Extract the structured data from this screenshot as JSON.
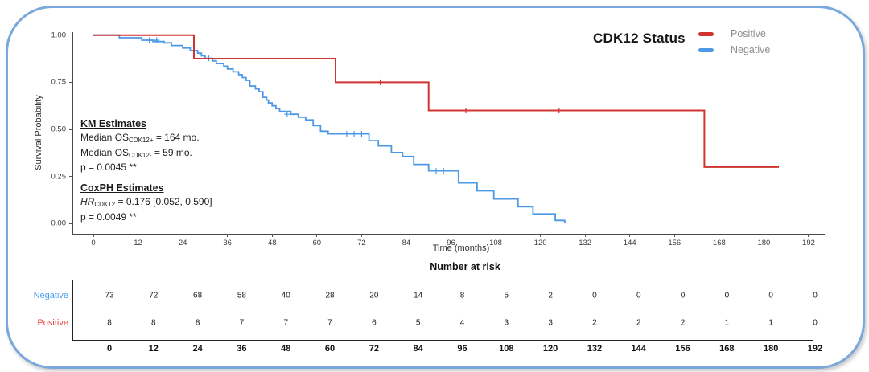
{
  "header": {
    "title": "CDK12 Status",
    "legend": [
      {
        "label": "Positive",
        "color": "#cf3430"
      },
      {
        "label": "Negative",
        "color": "#4c99e6"
      }
    ]
  },
  "annotations": {
    "km": {
      "heading": "KM Estimates",
      "lines": [
        {
          "segments": [
            {
              "v": "Median OS"
            },
            {
              "v": "CDK12+",
              "sub": true
            },
            {
              "v": " = 164 mo."
            }
          ]
        },
        {
          "segments": [
            {
              "v": "Median OS"
            },
            {
              "v": "CDK12-",
              "sub": true
            },
            {
              "v": " = 59 mo."
            }
          ]
        },
        {
          "segments": [
            {
              "v": "p = 0.0045 **"
            }
          ]
        }
      ]
    },
    "cox": {
      "heading": "CoxPH Estimates",
      "lines": [
        {
          "segments": [
            {
              "v": "HR",
              "it": true
            },
            {
              "v": "CDK12",
              "sub": true
            },
            {
              "v": " = 0.176 [0.052, 0.590]"
            }
          ]
        },
        {
          "segments": [
            {
              "v": "p = 0.0049 **"
            }
          ]
        }
      ]
    }
  },
  "chart_data": {
    "type": "line",
    "subtype": "kaplan-meier-step",
    "title": "CDK12 Status",
    "xlabel": "Time (months)",
    "ylabel": "Survival Probability",
    "xlim": [
      0,
      192
    ],
    "ylim": [
      0,
      1
    ],
    "x_ticks": [
      0,
      12,
      24,
      36,
      48,
      60,
      72,
      84,
      96,
      108,
      120,
      132,
      144,
      156,
      168,
      180,
      192
    ],
    "y_ticks": [
      {
        "label": "1.00",
        "value": 1.0
      },
      {
        "label": "0.75",
        "value": 0.75
      },
      {
        "label": "0.50",
        "value": 0.5
      },
      {
        "label": "0.25",
        "value": 0.25
      },
      {
        "label": "0.00",
        "value": 0.0
      }
    ],
    "grid": false,
    "legend_position": "top-right",
    "series": [
      {
        "name": "Positive",
        "color": "#cf3430",
        "steps": [
          [
            0,
            1.0
          ],
          [
            27,
            0.875
          ],
          [
            65,
            0.75
          ],
          [
            90,
            0.6
          ],
          [
            164,
            0.3
          ]
        ],
        "end_time": 184,
        "censors": [
          [
            77,
            0.75
          ],
          [
            100,
            0.6
          ],
          [
            125,
            0.6
          ]
        ]
      },
      {
        "name": "Negative",
        "color": "#4c99e6",
        "steps": [
          [
            0,
            1.0
          ],
          [
            7,
            0.986
          ],
          [
            13,
            0.973
          ],
          [
            16,
            0.966
          ],
          [
            19,
            0.959
          ],
          [
            21,
            0.945
          ],
          [
            24,
            0.932
          ],
          [
            26,
            0.918
          ],
          [
            28,
            0.904
          ],
          [
            29,
            0.89
          ],
          [
            30,
            0.877
          ],
          [
            32,
            0.863
          ],
          [
            33,
            0.849
          ],
          [
            35,
            0.835
          ],
          [
            36,
            0.82
          ],
          [
            37.5,
            0.805
          ],
          [
            39,
            0.79
          ],
          [
            40,
            0.775
          ],
          [
            41,
            0.76
          ],
          [
            42,
            0.73
          ],
          [
            43.5,
            0.715
          ],
          [
            44.5,
            0.7
          ],
          [
            45.5,
            0.67
          ],
          [
            46.5,
            0.655
          ],
          [
            47,
            0.64
          ],
          [
            48,
            0.625
          ],
          [
            49,
            0.61
          ],
          [
            50,
            0.595
          ],
          [
            53,
            0.58
          ],
          [
            55,
            0.565
          ],
          [
            57,
            0.55
          ],
          [
            59,
            0.52
          ],
          [
            61,
            0.49
          ],
          [
            63,
            0.476
          ],
          [
            74,
            0.44
          ],
          [
            76.5,
            0.412
          ],
          [
            80,
            0.377
          ],
          [
            83,
            0.356
          ],
          [
            86,
            0.314
          ],
          [
            90,
            0.28
          ],
          [
            98,
            0.216
          ],
          [
            103,
            0.174
          ],
          [
            107.5,
            0.131
          ],
          [
            114,
            0.089
          ],
          [
            118,
            0.051
          ],
          [
            124,
            0.017
          ],
          [
            126.5,
            0.01
          ]
        ],
        "end_time": 127,
        "censors": [
          [
            15,
            0.973
          ],
          [
            17,
            0.973
          ],
          [
            31,
            0.877
          ],
          [
            52,
            0.58
          ],
          [
            68,
            0.476
          ],
          [
            70,
            0.476
          ],
          [
            72,
            0.476
          ],
          [
            92,
            0.28
          ],
          [
            94,
            0.28
          ]
        ]
      }
    ]
  },
  "risk_table": {
    "title": "Number at risk",
    "time_ticks": [
      0,
      12,
      24,
      36,
      48,
      60,
      72,
      84,
      96,
      108,
      120,
      132,
      144,
      156,
      168,
      180,
      192
    ],
    "rows": [
      {
        "label": "Negative",
        "color": "#4aa0f2",
        "values": [
          73,
          72,
          68,
          58,
          40,
          28,
          20,
          14,
          8,
          5,
          2,
          0,
          0,
          0,
          0,
          0,
          0
        ]
      },
      {
        "label": "Positive",
        "color": "#e6453e",
        "values": [
          8,
          8,
          8,
          7,
          7,
          7,
          6,
          5,
          4,
          3,
          3,
          2,
          2,
          2,
          1,
          1,
          0
        ]
      }
    ]
  },
  "frame": {
    "border_color": "#7ba8dc"
  }
}
